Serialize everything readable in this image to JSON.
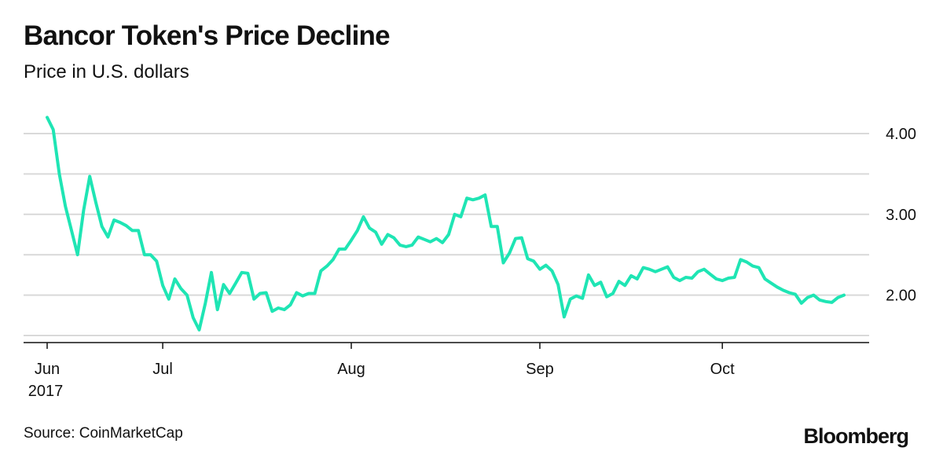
{
  "header": {
    "title": "Bancor Token's Price Decline",
    "subtitle": "Price in U.S. dollars"
  },
  "footer": {
    "source": "Source: CoinMarketCap",
    "brand": "Bloomberg"
  },
  "colors": {
    "line": "#1fe5b4",
    "grid": "#d9d9d9",
    "axis": "#111111"
  },
  "chart_data": {
    "type": "line",
    "title": "Bancor Token's Price Decline",
    "subtitle": "Price in U.S. dollars",
    "xlabel": "",
    "ylabel": "",
    "x_range": [
      "2017-06-12",
      "2017-10-31"
    ],
    "ylim": [
      1.5,
      4.25
    ],
    "y_ticks": [
      4.0,
      3.0,
      2.0
    ],
    "y_tick_labels": [
      "4.00",
      "3.00",
      "2.00"
    ],
    "y_axis_side": "right",
    "x_ticks": [
      {
        "date": "2017-06-12",
        "label": "Jun",
        "sublabel": "2017"
      },
      {
        "date": "2017-07-01",
        "label": "Jul",
        "sublabel": ""
      },
      {
        "date": "2017-08-01",
        "label": "Aug",
        "sublabel": ""
      },
      {
        "date": "2017-09-01",
        "label": "Sep",
        "sublabel": ""
      },
      {
        "date": "2017-10-01",
        "label": "Oct",
        "sublabel": ""
      }
    ],
    "grid": true,
    "series": [
      {
        "color": "#1fe5b4",
        "points": [
          [
            "2017-06-12",
            4.2
          ],
          [
            "2017-06-13",
            4.05
          ],
          [
            "2017-06-14",
            3.5
          ],
          [
            "2017-06-15",
            3.1
          ],
          [
            "2017-06-16",
            2.8
          ],
          [
            "2017-06-17",
            2.5
          ],
          [
            "2017-06-18",
            3.05
          ],
          [
            "2017-06-19",
            3.47
          ],
          [
            "2017-06-20",
            3.15
          ],
          [
            "2017-06-21",
            2.85
          ],
          [
            "2017-06-22",
            2.72
          ],
          [
            "2017-06-23",
            2.93
          ],
          [
            "2017-06-24",
            2.9
          ],
          [
            "2017-06-25",
            2.86
          ],
          [
            "2017-06-26",
            2.8
          ],
          [
            "2017-06-27",
            2.8
          ],
          [
            "2017-06-28",
            2.5
          ],
          [
            "2017-06-29",
            2.5
          ],
          [
            "2017-06-30",
            2.42
          ],
          [
            "2017-07-01",
            2.12
          ],
          [
            "2017-07-02",
            1.95
          ],
          [
            "2017-07-03",
            2.2
          ],
          [
            "2017-07-04",
            2.08
          ],
          [
            "2017-07-05",
            2.0
          ],
          [
            "2017-07-06",
            1.72
          ],
          [
            "2017-07-07",
            1.57
          ],
          [
            "2017-07-08",
            1.9
          ],
          [
            "2017-07-09",
            2.28
          ],
          [
            "2017-07-10",
            1.82
          ],
          [
            "2017-07-11",
            2.13
          ],
          [
            "2017-07-12",
            2.02
          ],
          [
            "2017-07-13",
            2.15
          ],
          [
            "2017-07-14",
            2.28
          ],
          [
            "2017-07-15",
            2.27
          ],
          [
            "2017-07-16",
            1.95
          ],
          [
            "2017-07-17",
            2.02
          ],
          [
            "2017-07-18",
            2.03
          ],
          [
            "2017-07-19",
            1.8
          ],
          [
            "2017-07-20",
            1.84
          ],
          [
            "2017-07-21",
            1.82
          ],
          [
            "2017-07-22",
            1.88
          ],
          [
            "2017-07-23",
            2.03
          ],
          [
            "2017-07-24",
            1.99
          ],
          [
            "2017-07-25",
            2.02
          ],
          [
            "2017-07-26",
            2.02
          ],
          [
            "2017-07-27",
            2.3
          ],
          [
            "2017-07-28",
            2.36
          ],
          [
            "2017-07-29",
            2.44
          ],
          [
            "2017-07-30",
            2.57
          ],
          [
            "2017-07-31",
            2.57
          ],
          [
            "2017-08-01",
            2.68
          ],
          [
            "2017-08-02",
            2.8
          ],
          [
            "2017-08-03",
            2.97
          ],
          [
            "2017-08-04",
            2.83
          ],
          [
            "2017-08-05",
            2.78
          ],
          [
            "2017-08-06",
            2.63
          ],
          [
            "2017-08-07",
            2.75
          ],
          [
            "2017-08-08",
            2.71
          ],
          [
            "2017-08-09",
            2.62
          ],
          [
            "2017-08-10",
            2.6
          ],
          [
            "2017-08-11",
            2.62
          ],
          [
            "2017-08-12",
            2.72
          ],
          [
            "2017-08-13",
            2.69
          ],
          [
            "2017-08-14",
            2.66
          ],
          [
            "2017-08-15",
            2.7
          ],
          [
            "2017-08-16",
            2.65
          ],
          [
            "2017-08-17",
            2.75
          ],
          [
            "2017-08-18",
            3.0
          ],
          [
            "2017-08-19",
            2.97
          ],
          [
            "2017-08-20",
            3.2
          ],
          [
            "2017-08-21",
            3.18
          ],
          [
            "2017-08-22",
            3.2
          ],
          [
            "2017-08-23",
            3.24
          ],
          [
            "2017-08-24",
            2.85
          ],
          [
            "2017-08-25",
            2.85
          ],
          [
            "2017-08-26",
            2.4
          ],
          [
            "2017-08-27",
            2.52
          ],
          [
            "2017-08-28",
            2.7
          ],
          [
            "2017-08-29",
            2.71
          ],
          [
            "2017-08-30",
            2.45
          ],
          [
            "2017-08-31",
            2.42
          ],
          [
            "2017-09-01",
            2.32
          ],
          [
            "2017-09-02",
            2.37
          ],
          [
            "2017-09-03",
            2.3
          ],
          [
            "2017-09-04",
            2.13
          ],
          [
            "2017-09-05",
            1.73
          ],
          [
            "2017-09-06",
            1.95
          ],
          [
            "2017-09-07",
            1.99
          ],
          [
            "2017-09-08",
            1.96
          ],
          [
            "2017-09-09",
            2.25
          ],
          [
            "2017-09-10",
            2.12
          ],
          [
            "2017-09-11",
            2.16
          ],
          [
            "2017-09-12",
            1.98
          ],
          [
            "2017-09-13",
            2.02
          ],
          [
            "2017-09-14",
            2.17
          ],
          [
            "2017-09-15",
            2.12
          ],
          [
            "2017-09-16",
            2.24
          ],
          [
            "2017-09-17",
            2.2
          ],
          [
            "2017-09-18",
            2.34
          ],
          [
            "2017-09-19",
            2.32
          ],
          [
            "2017-09-20",
            2.29
          ],
          [
            "2017-09-21",
            2.32
          ],
          [
            "2017-09-22",
            2.35
          ],
          [
            "2017-09-23",
            2.22
          ],
          [
            "2017-09-24",
            2.18
          ],
          [
            "2017-09-25",
            2.22
          ],
          [
            "2017-09-26",
            2.21
          ],
          [
            "2017-09-27",
            2.29
          ],
          [
            "2017-09-28",
            2.32
          ],
          [
            "2017-09-29",
            2.26
          ],
          [
            "2017-09-30",
            2.2
          ],
          [
            "2017-10-01",
            2.18
          ],
          [
            "2017-10-02",
            2.21
          ],
          [
            "2017-10-03",
            2.22
          ],
          [
            "2017-10-04",
            2.44
          ],
          [
            "2017-10-05",
            2.41
          ],
          [
            "2017-10-06",
            2.36
          ],
          [
            "2017-10-07",
            2.34
          ],
          [
            "2017-10-08",
            2.2
          ],
          [
            "2017-10-09",
            2.15
          ],
          [
            "2017-10-10",
            2.1
          ],
          [
            "2017-10-11",
            2.06
          ],
          [
            "2017-10-12",
            2.03
          ],
          [
            "2017-10-13",
            2.01
          ],
          [
            "2017-10-14",
            1.9
          ],
          [
            "2017-10-15",
            1.97
          ],
          [
            "2017-10-16",
            2.0
          ],
          [
            "2017-10-17",
            1.94
          ],
          [
            "2017-10-18",
            1.92
          ],
          [
            "2017-10-19",
            1.91
          ],
          [
            "2017-10-20",
            1.97
          ],
          [
            "2017-10-21",
            2.0
          ]
        ]
      }
    ]
  }
}
